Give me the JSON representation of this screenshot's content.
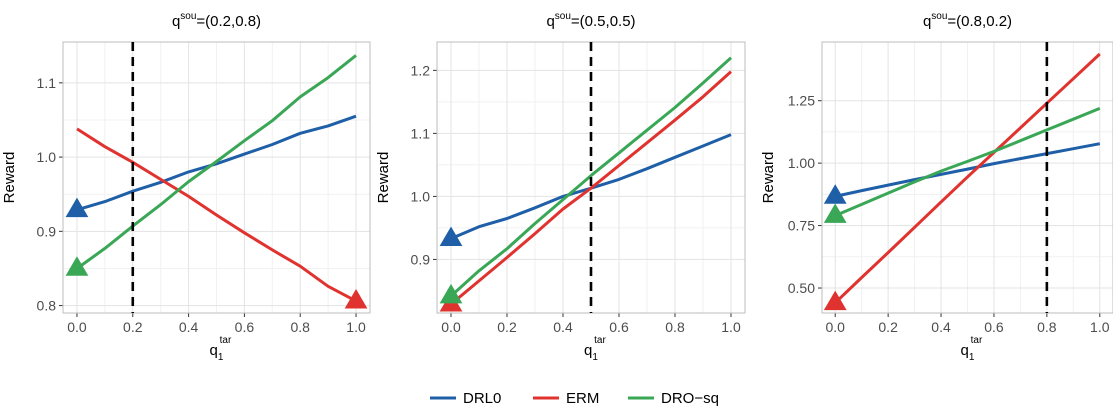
{
  "colors": {
    "DRL0": "#1f5fa8",
    "ERM": "#e0332f",
    "DRO-sq": "#3aa757",
    "grid_major": "#e3e3e3",
    "grid_minor": "#f1f1f1",
    "panel_border": "#bdbdbd",
    "vline": "#000000"
  },
  "legend": {
    "position": "bottom",
    "items": [
      {
        "key": "DRL0",
        "label": "DRL0"
      },
      {
        "key": "ERM",
        "label": "ERM"
      },
      {
        "key": "DRO-sq",
        "label": "DRO−sq"
      }
    ]
  },
  "chart_data": [
    {
      "type": "line",
      "title": {
        "base": "q",
        "sup": "sou",
        "rest": "=(0.2,0.8)"
      },
      "xlabel": {
        "base": "q",
        "sub": "1",
        "sup": "tar"
      },
      "ylabel": "Reward",
      "xlim": [
        -0.05,
        1.05
      ],
      "ylim": [
        0.79,
        1.155
      ],
      "xticks": [
        0,
        0.2,
        0.4,
        0.6,
        0.8,
        1
      ],
      "xtick_labels": [
        "0.0",
        "0.2",
        "0.4",
        "0.6",
        "0.8",
        "1.0"
      ],
      "yticks": [
        0.8,
        0.9,
        1.0,
        1.1
      ],
      "ytick_labels": [
        "0.8",
        "0.9",
        "1.0",
        "1.1"
      ],
      "vline": 0.2,
      "x": [
        0,
        0.1,
        0.2,
        0.3,
        0.4,
        0.5,
        0.6,
        0.7,
        0.8,
        0.9,
        1.0
      ],
      "series": [
        {
          "key": "DRL0",
          "values": [
            0.929,
            0.94,
            0.954,
            0.966,
            0.98,
            0.991,
            1.004,
            1.017,
            1.032,
            1.042,
            1.055
          ],
          "marker_at": 0
        },
        {
          "key": "ERM",
          "values": [
            1.038,
            1.014,
            0.993,
            0.97,
            0.947,
            0.922,
            0.898,
            0.875,
            0.853,
            0.826,
            0.806
          ],
          "marker_at": 1.0
        },
        {
          "key": "DRO-sq",
          "values": [
            0.85,
            0.877,
            0.907,
            0.936,
            0.967,
            0.994,
            1.022,
            1.049,
            1.081,
            1.107,
            1.137
          ],
          "marker_at": 0
        }
      ]
    },
    {
      "type": "line",
      "title": {
        "base": "q",
        "sup": "sou",
        "rest": "=(0.5,0.5)"
      },
      "xlabel": {
        "base": "q",
        "sub": "1",
        "sup": "tar"
      },
      "ylabel": "Reward",
      "xlim": [
        -0.05,
        1.05
      ],
      "ylim": [
        0.815,
        1.245
      ],
      "xticks": [
        0,
        0.2,
        0.4,
        0.6,
        0.8,
        1
      ],
      "xtick_labels": [
        "0.0",
        "0.2",
        "0.4",
        "0.6",
        "0.8",
        "1.0"
      ],
      "yticks": [
        0.9,
        1.0,
        1.1,
        1.2
      ],
      "ytick_labels": [
        "0.9",
        "1.0",
        "1.1",
        "1.2"
      ],
      "vline": 0.5,
      "x": [
        0,
        0.1,
        0.2,
        0.3,
        0.4,
        0.5,
        0.6,
        0.7,
        0.8,
        0.9,
        1.0
      ],
      "series": [
        {
          "key": "DRL0",
          "values": [
            0.933,
            0.952,
            0.965,
            0.982,
            1.0,
            1.013,
            1.027,
            1.044,
            1.062,
            1.08,
            1.098
          ],
          "marker_at": 0
        },
        {
          "key": "ERM",
          "values": [
            0.829,
            0.866,
            0.903,
            0.941,
            0.98,
            1.013,
            1.049,
            1.085,
            1.121,
            1.158,
            1.198
          ],
          "marker_at": 0
        },
        {
          "key": "DRO-sq",
          "values": [
            0.842,
            0.882,
            0.917,
            0.957,
            0.995,
            1.033,
            1.069,
            1.105,
            1.141,
            1.18,
            1.22
          ],
          "marker_at": 0
        }
      ]
    },
    {
      "type": "line",
      "title": {
        "base": "q",
        "sup": "sou",
        "rest": "=(0.8,0.2)"
      },
      "xlabel": {
        "base": "q",
        "sub": "1",
        "sup": "tar"
      },
      "ylabel": "Reward",
      "xlim": [
        -0.05,
        1.05
      ],
      "ylim": [
        0.4,
        1.485
      ],
      "xticks": [
        0,
        0.2,
        0.4,
        0.6,
        0.8,
        1
      ],
      "xtick_labels": [
        "0.0",
        "0.2",
        "0.4",
        "0.6",
        "0.8",
        "1.0"
      ],
      "yticks": [
        0.5,
        0.75,
        1.0,
        1.25
      ],
      "ytick_labels": [
        "0.50",
        "0.75",
        "1.00",
        "1.25"
      ],
      "vline": 0.8,
      "x": [
        0,
        0.1,
        0.2,
        0.3,
        0.4,
        0.5,
        0.6,
        0.7,
        0.8,
        0.9,
        1.0
      ],
      "series": [
        {
          "key": "DRL0",
          "values": [
            0.867,
            0.89,
            0.912,
            0.934,
            0.955,
            0.976,
            0.998,
            1.018,
            1.038,
            1.058,
            1.078
          ],
          "marker_at": 0
        },
        {
          "key": "ERM",
          "values": [
            0.441,
            0.542,
            0.642,
            0.743,
            0.844,
            0.945,
            1.043,
            1.141,
            1.24,
            1.338,
            1.437
          ],
          "marker_at": 0
        },
        {
          "key": "DRO-sq",
          "values": [
            0.79,
            0.835,
            0.88,
            0.925,
            0.968,
            1.007,
            1.047,
            1.09,
            1.133,
            1.176,
            1.219
          ],
          "marker_at": 0
        }
      ]
    }
  ]
}
